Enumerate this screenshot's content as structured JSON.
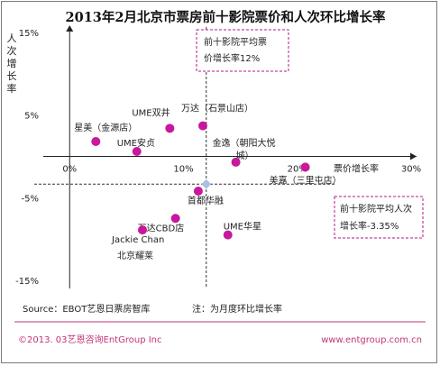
{
  "chart_data": {
    "type": "scatter",
    "title": "2013年2月北京市票房前十影院票价和人次环比增长率",
    "xlabel": "票价增长率",
    "ylabel": "人次增长率",
    "xlim": [
      -0.02,
      0.3
    ],
    "ylim": [
      -0.15,
      0.15
    ],
    "x_ticks": [
      "0%",
      "10%",
      "20%",
      "30%"
    ],
    "y_ticks": [
      "15%",
      "5%",
      "-5%",
      "-15%"
    ],
    "grid": false,
    "point_color": "#c8189b",
    "mean_marker_color": "#a9c3df",
    "points": [
      {
        "name": "星美（金源店）",
        "x": 0.023,
        "y": 0.018
      },
      {
        "name": "UME双井",
        "x": 0.088,
        "y": 0.034
      },
      {
        "name": "万达（石景山店）",
        "x": 0.117,
        "y": 0.037
      },
      {
        "name": "UME安贞",
        "x": 0.059,
        "y": 0.006
      },
      {
        "name": "金逸（朝阳大悦城）",
        "x": 0.146,
        "y": -0.007
      },
      {
        "name": "美嘉（三里屯店）",
        "x": 0.207,
        "y": -0.013
      },
      {
        "name": "首都华融",
        "x": 0.113,
        "y": -0.042
      },
      {
        "name": "万达CBD店",
        "x": 0.093,
        "y": -0.075
      },
      {
        "name": "UME华星",
        "x": 0.139,
        "y": -0.095
      },
      {
        "name": "Jackie Chan 北京耀莱",
        "x": 0.064,
        "y": -0.089
      }
    ],
    "mean": {
      "x": 0.12,
      "y": -0.0335
    },
    "annotations": [
      {
        "line1": "前十影院平均票",
        "line2": "价增长率12%"
      },
      {
        "line1": "前十影院平均人次",
        "line2": "增长率-3.35%"
      }
    ]
  },
  "source": "Source：EBOT艺恩日票房智库",
  "note": "注：为月度环比增长率",
  "copyright": "©2013. 03艺恩咨询EntGroup Inc",
  "website": "www.entgroup.com.cn"
}
